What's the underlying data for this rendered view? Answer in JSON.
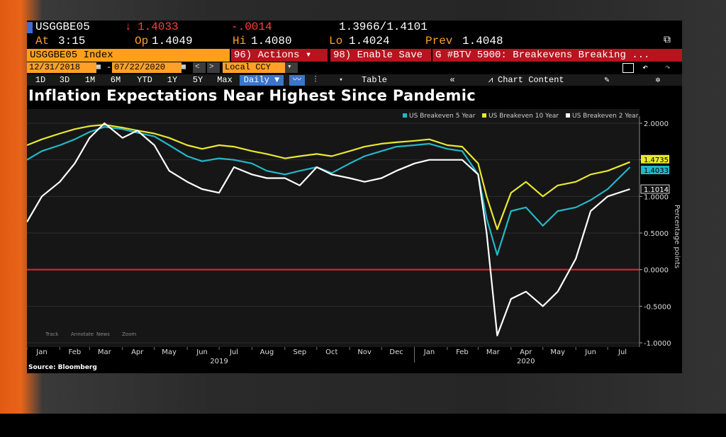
{
  "header": {
    "ticker": "USGGBE05",
    "last": "1.4033",
    "change": "-.0014",
    "range": "1.3966/1.4101",
    "at_label": "At",
    "time": "3:15",
    "open_label": "Op",
    "open": "1.4049",
    "hi_label": "Hi",
    "hi": "1.4080",
    "lo_label": "Lo",
    "lo": "1.4024",
    "prev_label": "Prev",
    "prev": "1.4048"
  },
  "toolbar": {
    "index_label": "USGGBE05 Index",
    "actions": "96) Actions",
    "enable_save": "98) Enable Save",
    "news": "G #BTV 5900: Breakevens Breaking ..."
  },
  "dates": {
    "start": "12/31/2018",
    "end": "07/22/2020",
    "currency": "Local CCY"
  },
  "periods": [
    "1D",
    "3D",
    "1M",
    "6M",
    "YTD",
    "1Y",
    "5Y",
    "Max"
  ],
  "frequency": "Daily",
  "table_label": "Table",
  "chart_content_label": "Chart Content",
  "title": "Inflation Expectations Near Highest Since Pandemic",
  "source": "Source: Bloomberg",
  "chart_data": {
    "type": "line",
    "ylabel": "Percentage points",
    "ylim": [
      -1.0,
      2.0
    ],
    "yticks": [
      "2.0000",
      "1.5000",
      "1.0000",
      "0.5000",
      "0.0000",
      "-0.5000",
      "-1.0000"
    ],
    "month_labels": [
      "Jan",
      "Feb",
      "Mar",
      "Apr",
      "May",
      "Jun",
      "Jul",
      "Aug",
      "Sep",
      "Oct",
      "Nov",
      "Dec",
      "Jan",
      "Feb",
      "Mar",
      "Apr",
      "May",
      "Jun",
      "Jul"
    ],
    "year_labels": [
      "2019",
      "2020"
    ],
    "legend": [
      "US Breakeven 5 Year",
      "US Breakeven 10 Year",
      "US Breakeven 2 Year"
    ],
    "last_value_labels": [
      "1.4735",
      "1.4033",
      "1.1014"
    ],
    "zero_line_color": "#e0203a",
    "bottom_tools": [
      "Track",
      "Annotate",
      "News",
      "Zoom"
    ],
    "x": [
      "2019-01-01",
      "2019-01-15",
      "2019-02-01",
      "2019-02-15",
      "2019-03-01",
      "2019-03-15",
      "2019-04-01",
      "2019-04-15",
      "2019-05-01",
      "2019-05-15",
      "2019-06-01",
      "2019-06-15",
      "2019-07-01",
      "2019-07-15",
      "2019-08-01",
      "2019-08-15",
      "2019-09-01",
      "2019-09-15",
      "2019-10-01",
      "2019-10-15",
      "2019-11-01",
      "2019-11-15",
      "2019-12-01",
      "2019-12-15",
      "2020-01-01",
      "2020-01-15",
      "2020-02-01",
      "2020-02-15",
      "2020-03-01",
      "2020-03-09",
      "2020-03-19",
      "2020-04-01",
      "2020-04-15",
      "2020-05-01",
      "2020-05-15",
      "2020-06-01",
      "2020-06-15",
      "2020-07-01",
      "2020-07-22"
    ],
    "series": [
      {
        "name": "US Breakeven 5 Year",
        "color": "#22b8c8",
        "values": [
          1.5,
          1.62,
          1.7,
          1.78,
          1.88,
          1.95,
          1.92,
          1.87,
          1.82,
          1.7,
          1.55,
          1.48,
          1.52,
          1.5,
          1.45,
          1.35,
          1.3,
          1.35,
          1.4,
          1.32,
          1.45,
          1.55,
          1.62,
          1.68,
          1.7,
          1.72,
          1.65,
          1.62,
          1.3,
          0.7,
          0.2,
          0.8,
          0.85,
          0.6,
          0.8,
          0.85,
          0.95,
          1.1,
          1.4
        ]
      },
      {
        "name": "US Breakeven 10 Year",
        "color": "#e8e830",
        "values": [
          1.7,
          1.78,
          1.86,
          1.92,
          1.96,
          1.98,
          1.94,
          1.9,
          1.86,
          1.8,
          1.7,
          1.65,
          1.7,
          1.68,
          1.62,
          1.58,
          1.52,
          1.55,
          1.58,
          1.55,
          1.62,
          1.68,
          1.72,
          1.74,
          1.76,
          1.78,
          1.7,
          1.68,
          1.45,
          1.0,
          0.55,
          1.05,
          1.2,
          1.0,
          1.15,
          1.2,
          1.3,
          1.35,
          1.47
        ]
      },
      {
        "name": "US Breakeven 2 Year",
        "color": "#ffffff",
        "values": [
          0.65,
          1.0,
          1.2,
          1.45,
          1.8,
          2.0,
          1.8,
          1.9,
          1.7,
          1.35,
          1.2,
          1.1,
          1.05,
          1.4,
          1.3,
          1.25,
          1.25,
          1.15,
          1.4,
          1.3,
          1.25,
          1.2,
          1.25,
          1.35,
          1.45,
          1.5,
          1.5,
          1.5,
          1.3,
          0.5,
          -0.9,
          -0.4,
          -0.3,
          -0.5,
          -0.3,
          0.15,
          0.8,
          1.0,
          1.1
        ]
      }
    ]
  }
}
